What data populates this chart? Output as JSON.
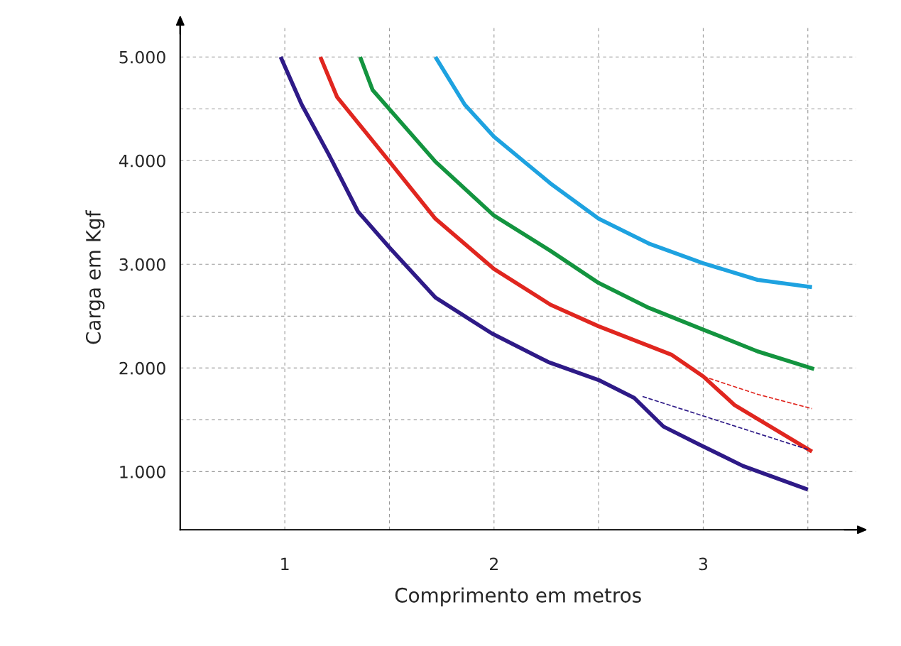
{
  "chart_data": {
    "type": "line",
    "xlabel": "Comprimento em metros",
    "ylabel": "Carga em Kgf",
    "xlim": [
      0.5,
      3.73
    ],
    "ylim": [
      440,
      5300
    ],
    "xticks": [
      {
        "value": 1,
        "label": "1"
      },
      {
        "value": 1.5,
        "label": null
      },
      {
        "value": 2,
        "label": "2"
      },
      {
        "value": 2.5,
        "label": null
      },
      {
        "value": 3,
        "label": "3"
      },
      {
        "value": 3.5,
        "label": null
      }
    ],
    "yticks": [
      {
        "value": 1000,
        "label": "1.000"
      },
      {
        "value": 1500,
        "label": null
      },
      {
        "value": 2000,
        "label": "2.000"
      },
      {
        "value": 2500,
        "label": null
      },
      {
        "value": 3000,
        "label": "3.000"
      },
      {
        "value": 3500,
        "label": null
      },
      {
        "value": 4000,
        "label": "4.000"
      },
      {
        "value": 4500,
        "label": null
      },
      {
        "value": 5000,
        "label": "5.000"
      }
    ],
    "grid": true,
    "legend": false,
    "marker": "none",
    "series": [
      {
        "color": "#2e1a87",
        "line_style": "solid",
        "x": [
          0.98,
          1.08,
          1.21,
          1.35,
          1.5,
          1.72,
          1.99,
          2.26,
          2.5,
          2.67,
          2.81,
          2.98,
          3.19,
          3.5
        ],
        "values": [
          5000,
          4544,
          4060,
          3508,
          3162,
          2679,
          2333,
          2057,
          1884,
          1712,
          1435,
          1263,
          1055,
          827
        ]
      },
      {
        "color": "#e0261f",
        "line_style": "solid",
        "x": [
          1.17,
          1.25,
          1.5,
          1.72,
          2.0,
          2.27,
          2.5,
          2.85,
          3.0,
          3.15,
          3.52
        ],
        "values": [
          5000,
          4613,
          3991,
          3439,
          2955,
          2610,
          2402,
          2126,
          1919,
          1642,
          1193
        ]
      },
      {
        "color": "#13943f",
        "line_style": "solid",
        "x": [
          1.36,
          1.42,
          1.72,
          2.0,
          2.27,
          2.5,
          2.74,
          3.0,
          3.26,
          3.53
        ],
        "values": [
          5000,
          4680,
          3990,
          3470,
          3130,
          2820,
          2580,
          2370,
          2160,
          1990
        ]
      },
      {
        "color": "#1ea2e0",
        "line_style": "solid",
        "x": [
          1.72,
          1.86,
          2.0,
          2.27,
          2.5,
          2.74,
          3.0,
          3.26,
          3.52
        ],
        "values": [
          5000,
          4540,
          4230,
          3780,
          3440,
          3200,
          3010,
          2850,
          2780
        ]
      },
      {
        "color": "#e0261f",
        "line_style": "dashed",
        "x": [
          3.0,
          3.26,
          3.52
        ],
        "values": [
          1919,
          1746,
          1608
        ]
      },
      {
        "color": "#2e1a87",
        "line_style": "dashed",
        "x": [
          2.71,
          3.5
        ],
        "values": [
          1725,
          1214
        ]
      }
    ]
  }
}
